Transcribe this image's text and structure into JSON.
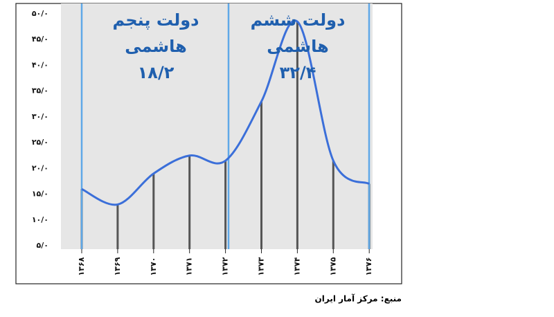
{
  "chart_data": {
    "type": "line",
    "categories": [
      "۱۳۶۸",
      "۱۳۶۹",
      "۱۳۷۰",
      "۱۳۷۱",
      "۱۳۷۲",
      "۱۳۷۳",
      "۱۳۷۴",
      "۱۳۷۵",
      "۱۳۷۶"
    ],
    "series": [
      {
        "color": "#3b6fd9",
        "values": [
          16,
          13,
          19,
          22.5,
          21.5,
          33,
          48.5,
          21.5,
          17
        ]
      }
    ],
    "ylim": [
      5,
      50
    ],
    "yticks": [
      {
        "value": 5,
        "label": "۵/۰"
      },
      {
        "value": 10,
        "label": "۱۰/۰"
      },
      {
        "value": 15,
        "label": "۱۵/۰"
      },
      {
        "value": 20,
        "label": "۲۰/۰"
      },
      {
        "value": 25,
        "label": "۲۵/۰"
      },
      {
        "value": 30,
        "label": "۳۰/۰"
      },
      {
        "value": 35,
        "label": "۳۵/۰"
      },
      {
        "value": 40,
        "label": "۴۰/۰"
      },
      {
        "value": 45,
        "label": "۴۵/۰"
      },
      {
        "value": 50,
        "label": "۵۰/۰"
      }
    ],
    "annotations": [
      [
        "دولت پنجم",
        "هاشمی",
        "۱۸/۲"
      ],
      [
        "دولت ششم",
        "هاشمی",
        "۳۲/۴"
      ]
    ],
    "source": "منبع: مرکز آمار ایران"
  }
}
